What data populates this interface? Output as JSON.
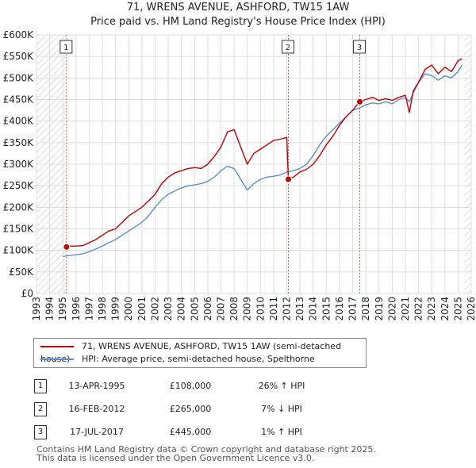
{
  "title": "71, WRENS AVENUE, ASHFORD, TW15 1AW",
  "subtitle": "Price paid vs. HM Land Registry's House Price Index (HPI)",
  "colors": {
    "property": "#c00000",
    "hpi": "#5a8fcc",
    "grid": "#dddddd",
    "hatch": "#c8c8c8",
    "sale_marker_line": "#e06060"
  },
  "chart_data": {
    "type": "line",
    "title": "71, WRENS AVENUE, ASHFORD, TW15 1AW",
    "subtitle": "Price paid vs. HM Land Registry's House Price Index (HPI)",
    "xlabel": "",
    "ylabel": "",
    "xlim": [
      1993,
      2026
    ],
    "ylim": [
      0,
      600000
    ],
    "x_ticks": [
      1993,
      1994,
      1995,
      1996,
      1997,
      1998,
      1999,
      2000,
      2001,
      2002,
      2003,
      2004,
      2005,
      2006,
      2007,
      2008,
      2009,
      2010,
      2011,
      2012,
      2013,
      2014,
      2015,
      2016,
      2017,
      2018,
      2019,
      2020,
      2021,
      2022,
      2023,
      2024,
      2025,
      2026
    ],
    "y_ticks": [
      0,
      50000,
      100000,
      150000,
      200000,
      250000,
      300000,
      350000,
      400000,
      450000,
      500000,
      550000,
      600000
    ],
    "y_tick_labels": [
      "£0",
      "£50K",
      "£100K",
      "£150K",
      "£200K",
      "£250K",
      "£300K",
      "£350K",
      "£400K",
      "£450K",
      "£500K",
      "£550K",
      "£600K"
    ],
    "grid": true,
    "hatched_ranges": [
      [
        1993,
        1995.28
      ],
      [
        2025.5,
        2026
      ]
    ],
    "series": [
      {
        "name": "71, WRENS AVENUE, ASHFORD, TW15 1AW (semi-detached house)",
        "x": [
          1995.28,
          1995.6,
          1996.0,
          1996.5,
          1997.0,
          1997.5,
          1998.0,
          1998.5,
          1999.0,
          1999.5,
          2000.0,
          2000.5,
          2001.0,
          2001.5,
          2002.0,
          2002.5,
          2003.0,
          2003.5,
          2004.0,
          2004.5,
          2005.0,
          2005.5,
          2006.0,
          2006.5,
          2007.0,
          2007.5,
          2008.0,
          2008.5,
          2009.0,
          2009.5,
          2010.0,
          2010.5,
          2011.0,
          2011.5,
          2012.0,
          2012.12,
          2012.5,
          2013.0,
          2013.5,
          2014.0,
          2014.5,
          2015.0,
          2015.5,
          2016.0,
          2016.5,
          2017.0,
          2017.54,
          2018.0,
          2018.5,
          2019.0,
          2019.5,
          2020.0,
          2020.5,
          2021.0,
          2021.3,
          2021.6,
          2022.0,
          2022.5,
          2023.0,
          2023.5,
          2024.0,
          2024.5,
          2025.0,
          2025.3
        ],
        "y": [
          108000,
          110000,
          110000,
          111000,
          118000,
          125000,
          135000,
          145000,
          150000,
          165000,
          180000,
          190000,
          200000,
          215000,
          230000,
          255000,
          270000,
          280000,
          285000,
          290000,
          292000,
          290000,
          300000,
          318000,
          340000,
          375000,
          380000,
          340000,
          300000,
          325000,
          335000,
          345000,
          355000,
          358000,
          362000,
          265000,
          270000,
          282000,
          288000,
          300000,
          320000,
          345000,
          365000,
          390000,
          410000,
          425000,
          445000,
          450000,
          455000,
          448000,
          452000,
          448000,
          455000,
          460000,
          420000,
          470000,
          490000,
          520000,
          530000,
          510000,
          525000,
          515000,
          540000,
          545000
        ]
      },
      {
        "name": "HPI: Average price, semi-detached house, Spelthorne",
        "x": [
          1995.0,
          1995.5,
          1996.0,
          1996.5,
          1997.0,
          1997.5,
          1998.0,
          1998.5,
          1999.0,
          1999.5,
          2000.0,
          2000.5,
          2001.0,
          2001.5,
          2002.0,
          2002.5,
          2003.0,
          2003.5,
          2004.0,
          2004.5,
          2005.0,
          2005.5,
          2006.0,
          2006.5,
          2007.0,
          2007.5,
          2008.0,
          2008.5,
          2009.0,
          2009.5,
          2010.0,
          2010.5,
          2011.0,
          2011.5,
          2012.0,
          2012.5,
          2013.0,
          2013.5,
          2014.0,
          2014.5,
          2015.0,
          2015.5,
          2016.0,
          2016.5,
          2017.0,
          2017.5,
          2018.0,
          2018.5,
          2019.0,
          2019.5,
          2020.0,
          2020.5,
          2021.0,
          2021.3,
          2021.6,
          2022.0,
          2022.5,
          2023.0,
          2023.5,
          2024.0,
          2024.5,
          2025.0,
          2025.3
        ],
        "y": [
          86000,
          88000,
          90000,
          92000,
          97000,
          103000,
          110000,
          118000,
          125000,
          135000,
          145000,
          155000,
          165000,
          180000,
          200000,
          218000,
          230000,
          238000,
          245000,
          250000,
          252000,
          255000,
          260000,
          270000,
          285000,
          295000,
          290000,
          265000,
          240000,
          255000,
          265000,
          270000,
          272000,
          275000,
          282000,
          285000,
          290000,
          300000,
          320000,
          345000,
          365000,
          380000,
          395000,
          410000,
          425000,
          430000,
          438000,
          442000,
          440000,
          445000,
          440000,
          450000,
          455000,
          445000,
          465000,
          490000,
          510000,
          505000,
          495000,
          505000,
          500000,
          515000,
          530000
        ]
      }
    ],
    "sales": [
      {
        "label": "1",
        "x": 1995.28,
        "y": 108000
      },
      {
        "label": "2",
        "x": 2012.12,
        "y": 265000
      },
      {
        "label": "3",
        "x": 2017.54,
        "y": 445000
      }
    ]
  },
  "legend": {
    "property_label": "71, WRENS AVENUE, ASHFORD, TW15 1AW (semi-detached house)",
    "hpi_label": "HPI: Average price, semi-detached house, Spelthorne"
  },
  "sales_table": [
    {
      "num": "1",
      "date": "13-APR-1995",
      "price": "£108,000",
      "hpi": "26% ↑ HPI"
    },
    {
      "num": "2",
      "date": "16-FEB-2012",
      "price": "£265,000",
      "hpi": "7% ↓ HPI"
    },
    {
      "num": "3",
      "date": "17-JUL-2017",
      "price": "£445,000",
      "hpi": "1% ↑ HPI"
    }
  ],
  "footer": {
    "line1": "Contains HM Land Registry data © Crown copyright and database right 2025.",
    "line2": "This data is licensed under the Open Government Licence v3.0."
  }
}
